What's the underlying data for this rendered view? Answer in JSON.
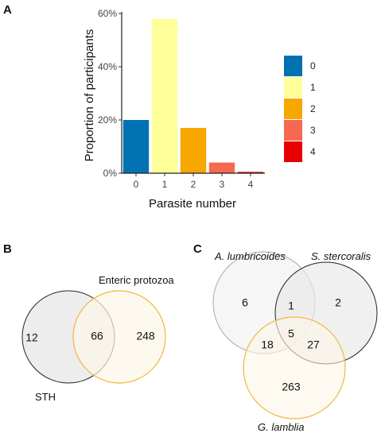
{
  "chart_data": [
    {
      "panel": "A",
      "type": "bar",
      "xlabel": "Parasite number",
      "ylabel": "Proportion of participants",
      "categories": [
        "0",
        "1",
        "2",
        "3",
        "4"
      ],
      "values": [
        20,
        58,
        17,
        4,
        0.5
      ],
      "ylim": [
        0,
        60
      ],
      "yticks": [
        "0%",
        "20%",
        "40%",
        "60%"
      ],
      "ytick_values": [
        0,
        20,
        40,
        60
      ],
      "colors": [
        "#0072b2",
        "#ffff99",
        "#f8a600",
        "#f4694f",
        "#e60000"
      ],
      "legend": {
        "placement": "right",
        "entries": [
          {
            "label": "0",
            "color": "#0072b2"
          },
          {
            "label": "1",
            "color": "#ffff99"
          },
          {
            "label": "2",
            "color": "#f8a600"
          },
          {
            "label": "3",
            "color": "#f4694f"
          },
          {
            "label": "4",
            "color": "#e60000"
          }
        ]
      },
      "grid": false
    },
    {
      "panel": "B",
      "type": "venn",
      "sets": [
        {
          "name": "STH",
          "color": "#222222"
        },
        {
          "name": "Enteric protozoa",
          "color": "#f0b73a"
        }
      ],
      "regions": [
        {
          "sets": [
            "STH"
          ],
          "value": 12
        },
        {
          "sets": [
            "STH",
            "Enteric protozoa"
          ],
          "value": 66
        },
        {
          "sets": [
            "Enteric protozoa"
          ],
          "value": 248
        }
      ]
    },
    {
      "panel": "C",
      "type": "venn",
      "sets": [
        {
          "name": "A. lumbricoides",
          "color": "#aaaaaa"
        },
        {
          "name": "S. stercoralis",
          "color": "#222222"
        },
        {
          "name": "G. lamblia",
          "color": "#f0b73a"
        }
      ],
      "regions": [
        {
          "sets": [
            "A. lumbricoides"
          ],
          "value": 6
        },
        {
          "sets": [
            "A. lumbricoides",
            "S. stercoralis"
          ],
          "value": 1
        },
        {
          "sets": [
            "S. stercoralis"
          ],
          "value": 2
        },
        {
          "sets": [
            "A. lumbricoides",
            "S. stercoralis",
            "G. lamblia"
          ],
          "value": 5
        },
        {
          "sets": [
            "A. lumbricoides",
            "G. lamblia"
          ],
          "value": 18
        },
        {
          "sets": [
            "S. stercoralis",
            "G. lamblia"
          ],
          "value": 27
        },
        {
          "sets": [
            "G. lamblia"
          ],
          "value": 263
        }
      ]
    }
  ],
  "panel_labels": {
    "a": "A",
    "b": "B",
    "c": "C"
  }
}
